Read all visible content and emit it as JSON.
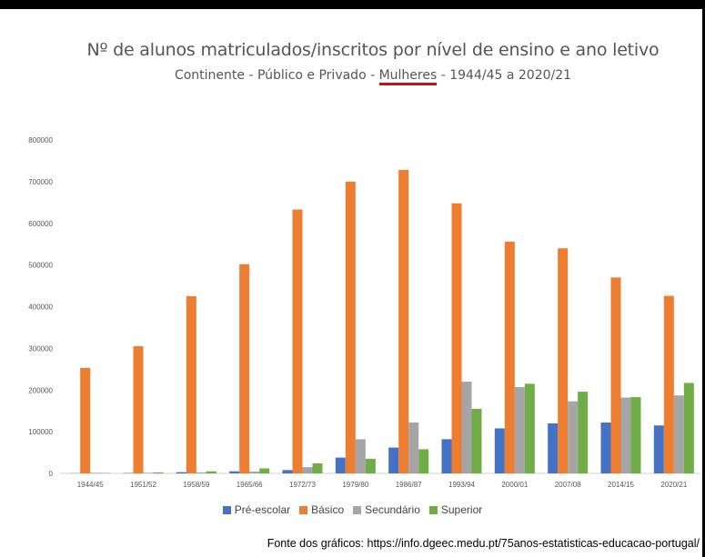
{
  "chart_data": {
    "type": "bar",
    "title": "Nº de alunos matriculados/inscritos por nível de ensino e ano letivo",
    "subtitle_parts": [
      "Continente - Público e Privado - ",
      "Mulheres",
      " - 1944/45 a 2020/21"
    ],
    "categories": [
      "1944/45",
      "1951/52",
      "1958/59",
      "1965/66",
      "1972/73",
      "1979/80",
      "1986/87",
      "1993/94",
      "2000/01",
      "2007/08",
      "2014/15",
      "2020/21"
    ],
    "series": [
      {
        "name": "Pré-escolar",
        "color": "#4472c4",
        "values": [
          500,
          1000,
          3000,
          5000,
          8000,
          38000,
          62000,
          82000,
          108000,
          120000,
          122000,
          115000
        ]
      },
      {
        "name": "Básico",
        "color": "#ed7d31",
        "values": [
          253000,
          305000,
          425000,
          502000,
          633000,
          700000,
          728000,
          648000,
          556000,
          540000,
          470000,
          426000
        ]
      },
      {
        "name": "Secundário",
        "color": "#a5a5a5",
        "values": [
          1500,
          1500,
          2500,
          4500,
          15000,
          82000,
          122000,
          220000,
          207000,
          173000,
          182000,
          187000
        ]
      },
      {
        "name": "Superior",
        "color": "#70ad47",
        "values": [
          1000,
          2500,
          5000,
          12000,
          24000,
          35000,
          58000,
          155000,
          215000,
          196000,
          183000,
          217000
        ]
      }
    ],
    "ylim": [
      0,
      800000
    ],
    "yticks": [
      "0",
      "100000",
      "200000",
      "300000",
      "400000",
      "500000",
      "600000",
      "700000",
      "800000"
    ],
    "grid": false,
    "legend": "bottom"
  },
  "source": "Fonte dos gráficos: https://info.dgeec.medu.pt/75anos-estatisticas-educacao-portugal/"
}
